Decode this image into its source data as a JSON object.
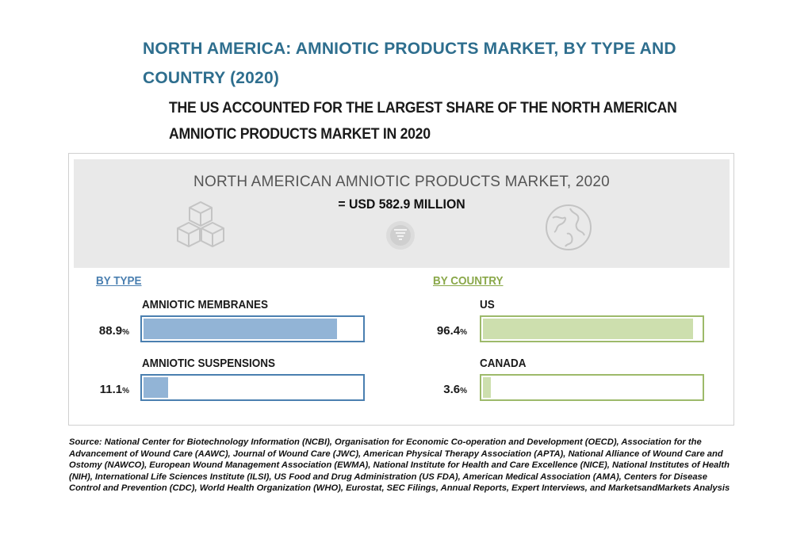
{
  "header": {
    "title": "NORTH AMERICA: AMNIOTIC PRODUCTS MARKET, BY TYPE AND COUNTRY (2020)",
    "subtitle": "THE US ACCOUNTED FOR THE LARGEST SHARE OF THE NORTH AMERICAN AMNIOTIC PRODUCTS MARKET IN 2020"
  },
  "banner": {
    "title": "NORTH AMERICAN AMNIOTIC PRODUCTS MARKET, 2020",
    "value": "= USD 582.9 MILLION",
    "icons": [
      "cubes-icon",
      "funnel-icon",
      "globe-icon"
    ]
  },
  "colors": {
    "type_bar": "#92b4d6",
    "type_border": "#4a7fb0",
    "country_bar": "#cddfae",
    "country_border": "#9dba6a",
    "title": "#2e6e8e"
  },
  "chart_data": [
    {
      "type": "bar",
      "title": "BY TYPE",
      "categories": [
        "AMNIOTIC MEMBRANES",
        "AMNIOTIC SUSPENSIONS"
      ],
      "values": [
        88.9,
        11.1
      ],
      "value_labels": [
        "88.9",
        "11.1"
      ],
      "unit": "%",
      "ylim": [
        0,
        100
      ]
    },
    {
      "type": "bar",
      "title": "BY COUNTRY",
      "categories": [
        "US",
        "CANADA"
      ],
      "values": [
        96.4,
        3.6
      ],
      "value_labels": [
        "96.4",
        "3.6"
      ],
      "unit": "%",
      "ylim": [
        0,
        100
      ]
    }
  ],
  "source": "Source: National Center for Biotechnology Information (NCBI), Organisation for Economic Co-operation and Development (OECD), Association for the Advancement of Wound Care (AAWC), Journal of Wound Care (JWC), American Physical Therapy Association (APTA), National Alliance of Wound Care and Ostomy (NAWCO), European Wound Management Association (EWMA), National Institute for Health and Care Excellence (NICE), National Institutes of Health (NIH), International Life Sciences Institute (ILSI), US Food and Drug Administration (US FDA), American Medical Association (AMA), Centers for Disease Control and Prevention (CDC), World Health Organization (WHO), Eurostat, SEC Filings, Annual Reports, Expert Interviews, and MarketsandMarkets Analysis"
}
